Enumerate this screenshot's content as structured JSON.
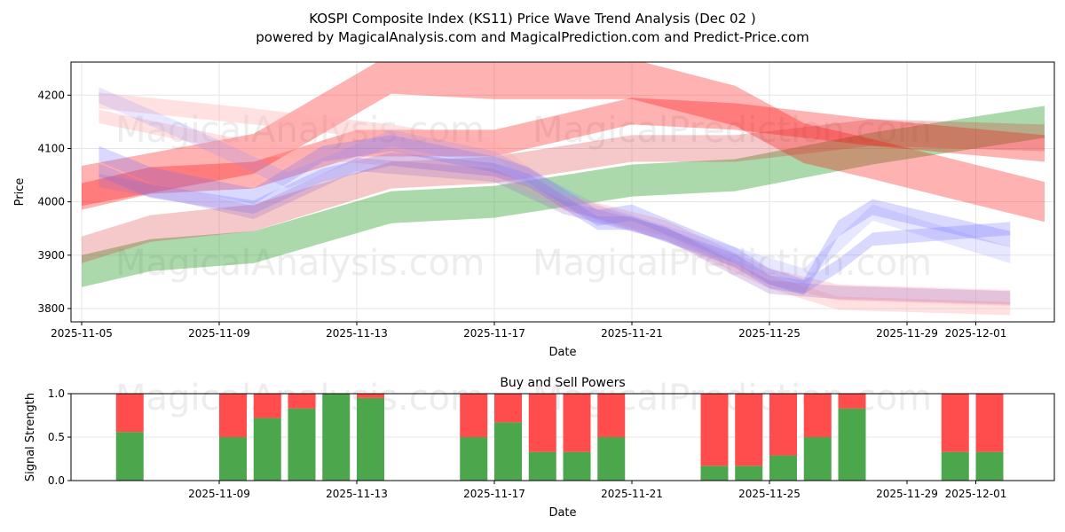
{
  "title_line1": "KOSPI Composite Index (KS11) Price Wave Trend Analysis (Dec 02 )",
  "title_line2": "powered by MagicalAnalysis.com and MagicalPrediction.com and Predict-Price.com",
  "watermarks": [
    "MagicalAnalysis.com",
    "MagicalPrediction.com"
  ],
  "chart_data": [
    {
      "type": "area",
      "title": "",
      "xlabel": "Date",
      "ylabel": "Price",
      "ylim": [
        3775,
        4262
      ],
      "xlim_days_from_2025_11_05": [
        -0.3,
        28.3
      ],
      "xticks": [
        {
          "day": 0,
          "label": "2025-11-05"
        },
        {
          "day": 4,
          "label": "2025-11-09"
        },
        {
          "day": 8,
          "label": "2025-11-13"
        },
        {
          "day": 12,
          "label": "2025-11-17"
        },
        {
          "day": 16,
          "label": "2025-11-21"
        },
        {
          "day": 20,
          "label": "2025-11-25"
        },
        {
          "day": 24,
          "label": "2025-11-29"
        },
        {
          "day": 26,
          "label": "2025-12-01"
        }
      ],
      "yticks": [
        3800,
        3900,
        4000,
        4100,
        4200
      ],
      "grid": true,
      "bands": [
        {
          "color": "#2ca02c",
          "opacity": 0.4,
          "width": 60,
          "points": [
            [
              0,
              3870
            ],
            [
              2,
              3900
            ],
            [
              5,
              3915
            ],
            [
              9,
              3990
            ],
            [
              12,
              4000
            ],
            [
              16,
              4040
            ],
            [
              19,
              4050
            ],
            [
              23,
              4100
            ],
            [
              28,
              4150
            ]
          ]
        },
        {
          "color": "#ff0000",
          "opacity": 0.3,
          "width": 75,
          "points": [
            [
              0,
              4030
            ],
            [
              5,
              4090
            ],
            [
              9,
              4240
            ],
            [
              12,
              4230
            ],
            [
              16,
              4230
            ],
            [
              19,
              4180
            ],
            [
              21,
              4110
            ],
            [
              23,
              4080
            ],
            [
              28,
              4000
            ]
          ]
        },
        {
          "color": "#ff0000",
          "opacity": 0.3,
          "width": 50,
          "points": [
            [
              0,
              4010
            ],
            [
              2,
              4040
            ],
            [
              5,
              4050
            ],
            [
              8,
              4110
            ],
            [
              12,
              4110
            ],
            [
              16,
              4170
            ],
            [
              19,
              4160
            ],
            [
              23,
              4130
            ],
            [
              28,
              4100
            ]
          ]
        },
        {
          "color": "#d62728",
          "opacity": 0.25,
          "width": 50,
          "points": [
            [
              0,
              3910
            ],
            [
              2,
              3950
            ],
            [
              5,
              3970
            ],
            [
              9,
              4050
            ],
            [
              12,
              4060
            ],
            [
              16,
              4100
            ],
            [
              19,
              4100
            ],
            [
              23,
              4130
            ],
            [
              28,
              4120
            ]
          ]
        },
        {
          "color": "#ffaaaa",
          "opacity": 0.35,
          "width": 30,
          "points": [
            [
              0.5,
              4190
            ],
            [
              5,
              4160
            ],
            [
              9,
              4130
            ],
            [
              12,
              4100
            ],
            [
              14,
              4000
            ],
            [
              17,
              3950
            ],
            [
              20,
              3860
            ],
            [
              22,
              3830
            ],
            [
              27,
              3820
            ]
          ]
        },
        {
          "color": "#ffaaaa",
          "opacity": 0.35,
          "width": 25,
          "points": [
            [
              0.5,
              4160
            ],
            [
              5,
              4100
            ],
            [
              9,
              4080
            ],
            [
              12,
              4060
            ],
            [
              14,
              4000
            ],
            [
              17,
              3940
            ],
            [
              20,
              3850
            ],
            [
              22,
              3810
            ],
            [
              27,
              3800
            ]
          ]
        },
        {
          "color": "#6666ff",
          "opacity": 0.25,
          "width": 30,
          "points": [
            [
              0.5,
              4090
            ],
            [
              2,
              4050
            ],
            [
              5,
              4010
            ],
            [
              7,
              4090
            ],
            [
              9,
              4110
            ],
            [
              12,
              4070
            ],
            [
              13,
              4050
            ],
            [
              15,
              3970
            ],
            [
              16,
              3980
            ],
            [
              19,
              3900
            ],
            [
              20,
              3860
            ],
            [
              21,
              3840
            ],
            [
              22,
              3950
            ],
            [
              23,
              3990
            ],
            [
              27,
              3930
            ]
          ]
        },
        {
          "color": "#6666ff",
          "opacity": 0.25,
          "width": 25,
          "points": [
            [
              0.5,
              4060
            ],
            [
              2,
              4020
            ],
            [
              5,
              3990
            ],
            [
              7,
              4050
            ],
            [
              9,
              4080
            ],
            [
              12,
              4060
            ],
            [
              13,
              4040
            ],
            [
              15,
              3960
            ],
            [
              16,
              3960
            ],
            [
              19,
              3890
            ],
            [
              20,
              3850
            ],
            [
              21,
              3840
            ],
            [
              22,
              3880
            ],
            [
              23,
              3930
            ],
            [
              27,
              3950
            ]
          ]
        },
        {
          "color": "#9966cc",
          "opacity": 0.25,
          "width": 25,
          "points": [
            [
              0.5,
              4040
            ],
            [
              3,
              4010
            ],
            [
              5,
              3980
            ],
            [
              8,
              4070
            ],
            [
              12,
              4050
            ],
            [
              14,
              3990
            ],
            [
              17,
              3940
            ],
            [
              20,
              3840
            ],
            [
              22,
              3830
            ],
            [
              27,
              3820
            ]
          ]
        },
        {
          "color": "#8888ff",
          "opacity": 0.2,
          "width": 30,
          "points": [
            [
              0.5,
              4200
            ],
            [
              3,
              4130
            ],
            [
              6,
              4040
            ],
            [
              9,
              4120
            ],
            [
              12,
              4080
            ],
            [
              15,
              3980
            ],
            [
              19,
              3900
            ],
            [
              21,
              3860
            ],
            [
              23,
              3980
            ],
            [
              27,
              3900
            ]
          ]
        }
      ]
    },
    {
      "type": "bar",
      "title": "Buy and Sell Powers",
      "xlabel": "Date",
      "ylabel": "Signal Strength",
      "ylim": [
        0,
        1
      ],
      "yticks": [
        "0.0",
        "0.5",
        "1.0"
      ],
      "xticks": [
        {
          "day": 4,
          "label": "2025-11-09"
        },
        {
          "day": 8,
          "label": "2025-11-13"
        },
        {
          "day": 12,
          "label": "2025-11-17"
        },
        {
          "day": 16,
          "label": "2025-11-21"
        },
        {
          "day": 20,
          "label": "2025-11-25"
        },
        {
          "day": 24,
          "label": "2025-11-29"
        },
        {
          "day": 26,
          "label": "2025-12-01"
        }
      ],
      "bar_days": [
        1,
        4,
        5,
        6,
        7,
        8,
        11,
        12,
        13,
        14,
        15,
        18,
        19,
        20,
        21,
        22,
        25,
        26
      ],
      "series": [
        {
          "name": "Buy",
          "color": "#4ca64c",
          "values": [
            0.56,
            0.5,
            0.72,
            0.83,
            1.0,
            0.95,
            0.5,
            0.67,
            0.33,
            0.33,
            0.5,
            0.17,
            0.17,
            0.29,
            0.5,
            0.83,
            0.33,
            0.33
          ]
        },
        {
          "name": "Sell",
          "color": "#ff4c4c",
          "values": [
            0.44,
            0.5,
            0.28,
            0.17,
            0.0,
            0.05,
            0.5,
            0.33,
            0.67,
            0.67,
            0.5,
            0.83,
            0.83,
            0.71,
            0.5,
            0.17,
            0.67,
            0.67
          ]
        }
      ]
    }
  ]
}
